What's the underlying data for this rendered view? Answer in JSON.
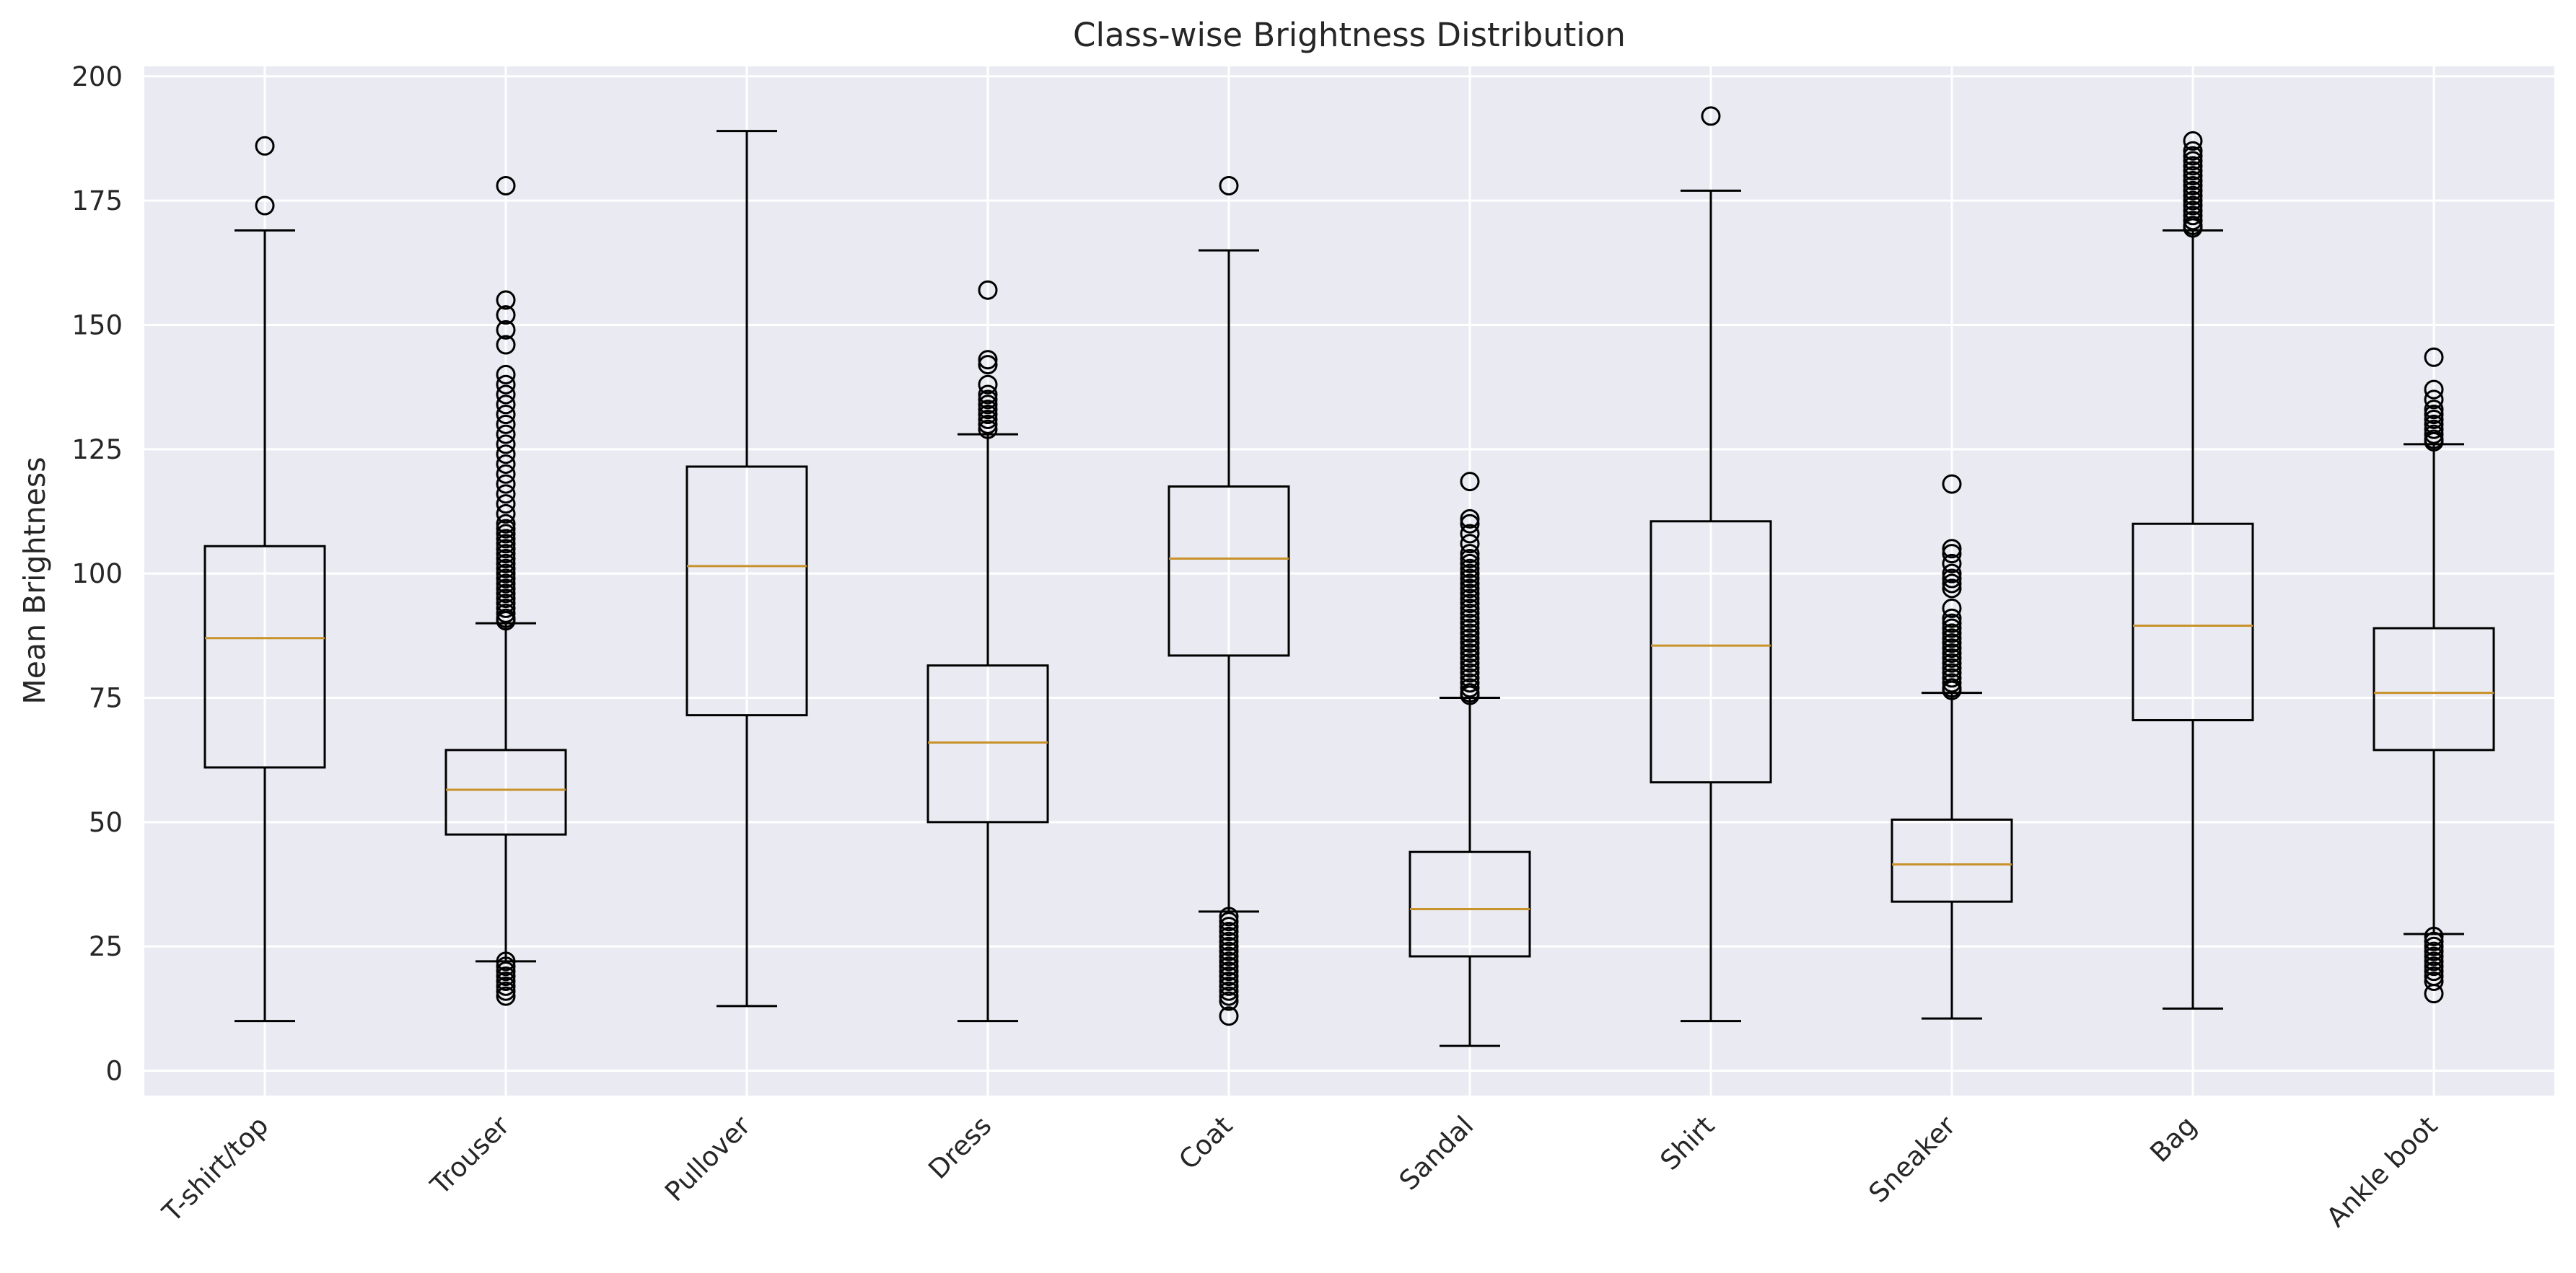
{
  "chart_data": {
    "type": "box",
    "title": "Class-wise Brightness Distribution",
    "xlabel": "",
    "ylabel": "Mean Brightness",
    "ylim": [
      -5,
      202
    ],
    "yticks": [
      0,
      25,
      50,
      75,
      100,
      125,
      150,
      175,
      200
    ],
    "grid": true,
    "legend": "none",
    "colors": {
      "background": "#eaeaf2",
      "grid": "#ffffff",
      "box": "#000000",
      "median": "#c8922a",
      "text": "#262626"
    },
    "categories": [
      "T-shirt/top",
      "Trouser",
      "Pullover",
      "Dress",
      "Coat",
      "Sandal",
      "Shirt",
      "Sneaker",
      "Bag",
      "Ankle boot"
    ],
    "boxes": [
      {
        "whisker_low": 10,
        "q1": 61,
        "median": 87,
        "q3": 105.5,
        "whisker_high": 169,
        "outliers": [
          174,
          186
        ]
      },
      {
        "whisker_low": 22,
        "q1": 47.5,
        "median": 56.5,
        "q3": 64.5,
        "whisker_high": 90,
        "outliers": [
          15,
          16,
          17,
          18,
          19,
          20,
          21,
          22,
          90.5,
          91,
          92,
          93,
          94,
          95,
          96,
          97,
          98,
          99,
          100,
          101,
          102,
          103,
          104,
          105,
          106,
          107,
          108,
          109,
          110,
          112,
          114,
          116,
          118,
          120,
          122,
          124,
          126,
          128,
          130,
          132,
          134,
          136,
          138,
          140,
          146,
          149,
          152,
          155,
          178
        ]
      },
      {
        "whisker_low": 13,
        "q1": 71.5,
        "median": 101.5,
        "q3": 121.5,
        "whisker_high": 189,
        "outliers": []
      },
      {
        "whisker_low": 10,
        "q1": 50,
        "median": 66,
        "q3": 81.5,
        "whisker_high": 128,
        "outliers": [
          129,
          130,
          131,
          132,
          133,
          134,
          135,
          136,
          138,
          142,
          143,
          157
        ]
      },
      {
        "whisker_low": 32,
        "q1": 83.5,
        "median": 103,
        "q3": 117.5,
        "whisker_high": 165,
        "outliers": [
          11,
          14,
          15,
          16,
          17,
          18,
          19,
          20,
          21,
          22,
          23,
          24,
          25,
          26,
          27,
          28,
          29,
          30,
          31,
          178
        ]
      },
      {
        "whisker_low": 5,
        "q1": 23,
        "median": 32.5,
        "q3": 44,
        "whisker_high": 75,
        "outliers": [
          75.5,
          76,
          77,
          78,
          79,
          80,
          81,
          82,
          83,
          84,
          85,
          86,
          87,
          88,
          89,
          90,
          91,
          92,
          93,
          94,
          95,
          96,
          97,
          98,
          99,
          100,
          101,
          102,
          103,
          104,
          106,
          108,
          110,
          111,
          118.5
        ]
      },
      {
        "whisker_low": 10,
        "q1": 58,
        "median": 85.5,
        "q3": 110.5,
        "whisker_high": 177,
        "outliers": [
          192
        ]
      },
      {
        "whisker_low": 10.5,
        "q1": 34,
        "median": 41.5,
        "q3": 50.5,
        "whisker_high": 76,
        "outliers": [
          76.5,
          77,
          78,
          79,
          80,
          81,
          82,
          83,
          84,
          85,
          86,
          87,
          88,
          89,
          90,
          91,
          93,
          97,
          98,
          99,
          100,
          102,
          104,
          105,
          118
        ]
      },
      {
        "whisker_low": 12.5,
        "q1": 70.5,
        "median": 89.5,
        "q3": 110,
        "whisker_high": 169,
        "outliers": [
          169.5,
          170,
          171,
          172,
          173,
          174,
          175,
          176,
          177,
          178,
          179,
          180,
          181,
          182,
          183,
          184,
          185,
          187
        ]
      },
      {
        "whisker_low": 27.5,
        "q1": 64.5,
        "median": 76,
        "q3": 89,
        "whisker_high": 126,
        "outliers": [
          15.5,
          18,
          19,
          20,
          21,
          22,
          23,
          24,
          25,
          26,
          27,
          126.5,
          127,
          128,
          129,
          130,
          131,
          132,
          133,
          135,
          137,
          143.5
        ]
      }
    ]
  }
}
